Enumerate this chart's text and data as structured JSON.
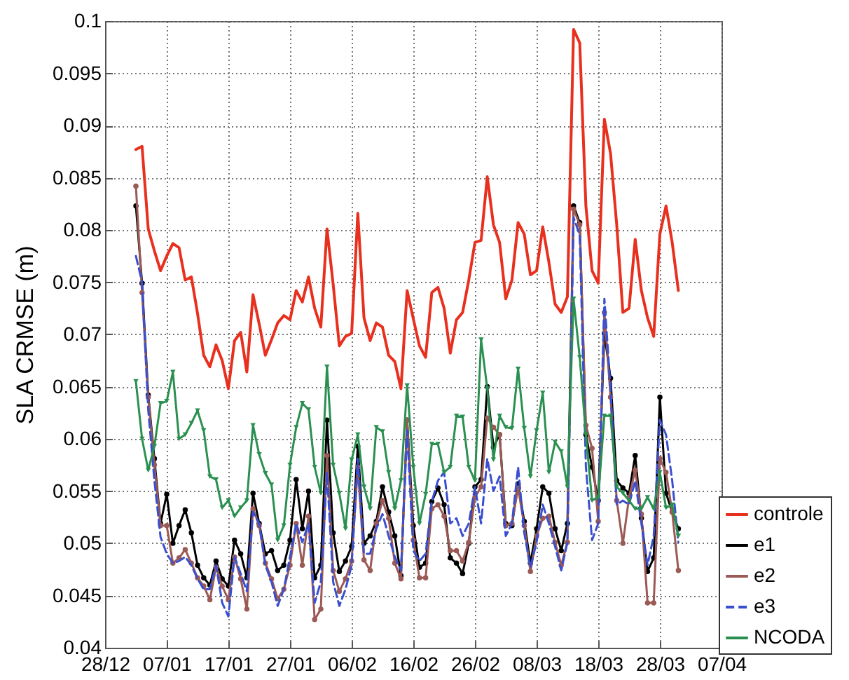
{
  "chart_data": {
    "type": "line",
    "ylabel": "SLA CRMSE (m)",
    "categories": [
      "28/12",
      null,
      null,
      null,
      null,
      null,
      null,
      null,
      null,
      null,
      "07/01",
      null,
      null,
      null,
      null,
      null,
      null,
      null,
      null,
      null,
      "17/01",
      null,
      null,
      null,
      null,
      null,
      null,
      null,
      null,
      null,
      "27/01",
      null,
      null,
      null,
      null,
      null,
      null,
      null,
      null,
      null,
      "06/02",
      null,
      null,
      null,
      null,
      null,
      null,
      null,
      null,
      null,
      "16/02",
      null,
      null,
      null,
      null,
      null,
      null,
      null,
      null,
      null,
      "26/02",
      null,
      null,
      null,
      null,
      null,
      null,
      null,
      null,
      null,
      "08/03",
      null,
      null,
      null,
      null,
      null,
      null,
      null,
      null,
      null,
      "18/03",
      null,
      null,
      null,
      null,
      null,
      null,
      null,
      null,
      null,
      "28/03",
      null,
      null,
      null,
      null,
      null,
      null,
      null,
      null,
      null,
      "07/04"
    ],
    "ylim": [
      0.04,
      0.1
    ],
    "yticks": [
      0.04,
      0.045,
      0.05,
      0.055,
      0.06,
      0.065,
      0.07,
      0.075,
      0.08,
      0.085,
      0.09,
      0.095,
      0.1
    ],
    "grid": true,
    "legend": "bottom right",
    "series": [
      {
        "name": "controle",
        "color": "#e8301f",
        "marker": "none",
        "line_style": "solid",
        "values": [
          null,
          null,
          null,
          null,
          null,
          0.0877,
          0.088,
          0.0801,
          0.078,
          0.0761,
          0.0775,
          0.0787,
          0.0783,
          0.0752,
          0.0755,
          0.072,
          0.068,
          0.0669,
          0.069,
          0.0675,
          0.0648,
          0.0694,
          0.0702,
          0.0664,
          0.0738,
          0.071,
          0.068,
          0.0695,
          0.0711,
          0.0718,
          0.0714,
          0.0742,
          0.0731,
          0.0755,
          0.0725,
          0.0707,
          0.0801,
          0.0748,
          0.0689,
          0.0698,
          0.0701,
          0.0816,
          0.0716,
          0.0694,
          0.0711,
          0.0707,
          0.068,
          0.0674,
          0.0648,
          0.0742,
          0.0715,
          0.0689,
          0.0678,
          0.074,
          0.0745,
          0.0725,
          0.0682,
          0.0714,
          0.0721,
          0.0752,
          0.0788,
          0.079,
          0.0851,
          0.0805,
          0.0788,
          0.0734,
          0.0752,
          0.0807,
          0.0796,
          0.0757,
          0.0761,
          0.0803,
          0.0769,
          0.0729,
          0.0721,
          0.0736,
          0.0992,
          0.0979,
          0.0823,
          0.0761,
          0.0749,
          0.0906,
          0.0873,
          0.0805,
          0.0721,
          0.0725,
          0.0791,
          0.0742,
          0.0716,
          0.0698,
          0.0796,
          0.0823,
          0.0788,
          0.0742,
          null,
          null,
          null,
          null,
          null,
          null,
          null
        ]
      },
      {
        "name": "e1",
        "color": "#000000",
        "marker": "circle",
        "line_style": "solid",
        "values": [
          null,
          null,
          null,
          null,
          null,
          0.0823,
          0.0749,
          0.0642,
          0.0581,
          0.0519,
          0.0547,
          0.05,
          0.0517,
          0.0532,
          0.051,
          0.0479,
          0.0467,
          0.046,
          0.0483,
          0.0466,
          0.0459,
          0.0503,
          0.049,
          0.0467,
          0.0548,
          0.0519,
          0.049,
          0.0493,
          0.0474,
          0.0479,
          0.0503,
          0.0561,
          0.0514,
          0.055,
          0.0467,
          0.0479,
          0.0618,
          0.051,
          0.0473,
          0.0483,
          0.0497,
          0.0593,
          0.05,
          0.0507,
          0.0521,
          0.0554,
          0.053,
          0.0507,
          0.0469,
          0.0618,
          0.0517,
          0.0477,
          0.0481,
          0.054,
          0.0553,
          0.0537,
          0.0486,
          0.0481,
          0.0471,
          0.05,
          0.0554,
          0.0561,
          0.065,
          0.0592,
          0.0604,
          0.0519,
          0.0517,
          0.0557,
          0.0521,
          0.0481,
          0.0514,
          0.0554,
          0.0548,
          0.0514,
          0.0493,
          0.0519,
          0.0823,
          0.0807,
          0.0604,
          0.0573,
          0.0541,
          0.0701,
          0.0658,
          0.056,
          0.0553,
          0.0548,
          0.0584,
          0.0524,
          0.0473,
          0.0486,
          0.064,
          0.0548,
          0.053,
          0.0514,
          null,
          null,
          null,
          null,
          null,
          null,
          null
        ]
      },
      {
        "name": "e2",
        "color": "#9b5a55",
        "marker": "circle",
        "line_style": "solid",
        "values": [
          null,
          null,
          null,
          null,
          null,
          0.0842,
          0.074,
          0.064,
          0.0575,
          0.0517,
          0.0517,
          0.0481,
          0.0486,
          0.0494,
          0.0481,
          0.0467,
          0.0459,
          0.0446,
          0.0477,
          0.0459,
          0.0446,
          0.0487,
          0.0466,
          0.0437,
          0.0533,
          0.0517,
          0.0481,
          0.0466,
          0.0447,
          0.0456,
          0.0479,
          0.0519,
          0.0479,
          0.0526,
          0.0427,
          0.0437,
          0.0584,
          0.0474,
          0.0454,
          0.0466,
          0.0483,
          0.0573,
          0.0484,
          0.0474,
          0.0519,
          0.0541,
          0.0524,
          0.0481,
          0.0466,
          0.0618,
          0.0503,
          0.0467,
          0.0467,
          0.0533,
          0.0537,
          0.0526,
          0.0493,
          0.0493,
          0.0483,
          0.0501,
          0.0544,
          0.0554,
          0.062,
          0.0611,
          0.0604,
          0.0517,
          0.0519,
          0.0553,
          0.0517,
          0.0473,
          0.0507,
          0.0524,
          0.0526,
          0.0501,
          0.0479,
          0.0501,
          0.082,
          0.0805,
          0.0613,
          0.0591,
          0.0521,
          0.0721,
          0.064,
          0.0541,
          0.05,
          0.0544,
          0.057,
          0.0528,
          0.0443,
          0.0443,
          0.0581,
          0.0568,
          0.053,
          0.0474,
          null,
          null,
          null,
          null,
          null,
          null,
          null
        ]
      },
      {
        "name": "e3",
        "color": "#3a4fd0",
        "marker": "none",
        "line_style": "dashed",
        "values": [
          null,
          null,
          null,
          null,
          null,
          0.0775,
          0.075,
          0.0628,
          0.056,
          0.0506,
          0.049,
          0.0481,
          0.0483,
          0.0487,
          0.0479,
          0.0466,
          0.0456,
          0.0456,
          0.0479,
          0.0443,
          0.043,
          0.0487,
          0.0471,
          0.0454,
          0.053,
          0.0519,
          0.0479,
          0.0463,
          0.044,
          0.0456,
          0.0487,
          0.0519,
          0.0501,
          0.0519,
          0.0443,
          0.0463,
          0.0568,
          0.0463,
          0.044,
          0.0456,
          0.0479,
          0.0581,
          0.049,
          0.049,
          0.0514,
          0.0528,
          0.0507,
          0.0487,
          0.0474,
          0.0608,
          0.0493,
          0.0483,
          0.049,
          0.054,
          0.056,
          0.0568,
          0.0519,
          0.0524,
          0.0507,
          0.0519,
          0.0554,
          0.0519,
          0.0581,
          0.055,
          0.0564,
          0.0507,
          0.0519,
          0.0573,
          0.051,
          0.0477,
          0.0501,
          0.0537,
          0.0519,
          0.0497,
          0.0474,
          0.0501,
          0.0812,
          0.0795,
          0.0573,
          0.0503,
          0.0519,
          0.0734,
          0.0648,
          0.0537,
          0.0541,
          0.0537,
          0.056,
          0.0519,
          0.0479,
          0.0507,
          0.0618,
          0.0604,
          0.056,
          0.0501,
          null,
          null,
          null,
          null,
          null,
          null,
          null
        ]
      },
      {
        "name": "NCODA",
        "color": "#2a9050",
        "marker": "triangle",
        "line_style": "solid",
        "values": [
          null,
          null,
          null,
          null,
          null,
          0.0655,
          0.06,
          0.057,
          0.0593,
          0.0634,
          0.0636,
          0.0664,
          0.06,
          0.0604,
          0.0615,
          0.0627,
          0.0608,
          0.0564,
          0.0561,
          0.0534,
          0.0541,
          0.0526,
          0.0534,
          0.0541,
          0.0613,
          0.0585,
          0.0567,
          0.0556,
          0.0503,
          0.0517,
          0.0575,
          0.0611,
          0.0634,
          0.0628,
          0.0573,
          0.0548,
          0.0669,
          0.0575,
          0.0548,
          0.0514,
          0.058,
          0.0604,
          0.0554,
          0.0533,
          0.0611,
          0.0607,
          0.0568,
          0.0533,
          0.056,
          0.0651,
          0.0573,
          0.0519,
          0.0547,
          0.0595,
          0.0595,
          0.0568,
          0.0573,
          0.0622,
          0.0621,
          0.0573,
          0.056,
          0.0695,
          0.0648,
          0.058,
          0.0622,
          0.0611,
          0.061,
          0.0667,
          0.061,
          0.0564,
          0.0608,
          0.0644,
          0.0568,
          0.0597,
          0.0588,
          0.0554,
          0.0734,
          0.0678,
          0.0604,
          0.0541,
          0.0544,
          0.0622,
          0.0622,
          0.0554,
          0.0548,
          0.0541,
          0.0533,
          0.0533,
          0.0544,
          0.0533,
          0.0568,
          0.0534,
          0.0537,
          0.0507,
          null,
          null,
          null,
          null,
          null,
          null,
          null
        ]
      }
    ]
  }
}
